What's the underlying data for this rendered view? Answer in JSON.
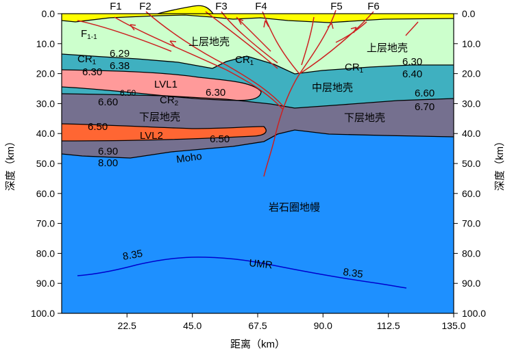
{
  "axes": {
    "y_ticks": [
      "0.0",
      "10.0",
      "20.0",
      "30.0",
      "40.0",
      "50.0",
      "60.0",
      "70.0",
      "80.0",
      "90.0",
      "100.0"
    ],
    "x_ticks": [
      "22.5",
      "45.0",
      "67.5",
      "90.0",
      "112.5",
      "135.0"
    ],
    "x_label": "距离（km）",
    "y_label_left": "深度（km）",
    "y_label_right": "深度（km）"
  },
  "faults": [
    "F1",
    "F2",
    "F3",
    "F4",
    "F5",
    "F6"
  ],
  "fault_f1_1": {
    "main": "F",
    "sub": "1-1"
  },
  "layers": {
    "upper_crust_left": "上层地壳",
    "upper_crust_right": "上层地壳",
    "middle_crust": "中层地壳",
    "lower_crust_left": "下层地壳",
    "lower_crust_right": "下层地壳",
    "lithospheric_mantle": "岩石圈地幔",
    "lvl1": "LVL1",
    "lvl2": "LVL2",
    "moho": "Moho",
    "umr": "UMR"
  },
  "interfaces": {
    "cr1": {
      "main": "CR",
      "sub": "1"
    },
    "cr2": {
      "main": "CR",
      "sub": "2"
    }
  },
  "velocities": {
    "v_629": "6.29",
    "v_638": "6.38",
    "v_630_a": "6.30",
    "v_650_a": "6.50",
    "v_660_a": "6.60",
    "v_630_b": "6.30",
    "v_650_b": "6.50",
    "v_650_c": "6.50",
    "v_690": "6.90",
    "v_800": "8.00",
    "v_630_c": "6.30",
    "v_640": "6.40",
    "v_660_b": "6.60",
    "v_670": "6.70",
    "v_835_a": "8.35",
    "v_835_b": "8.35"
  },
  "colors": {
    "sediment": "#ffff00",
    "upper_crust": "#ccffcc",
    "middle_crust": "#3fb0c0",
    "lvl1": "#ff9a9a",
    "lower_crust": "#75708f",
    "lvl2": "#ff6633",
    "mantle": "#1e90ff",
    "fault": "#cc2020",
    "umr": "#0000cc"
  }
}
